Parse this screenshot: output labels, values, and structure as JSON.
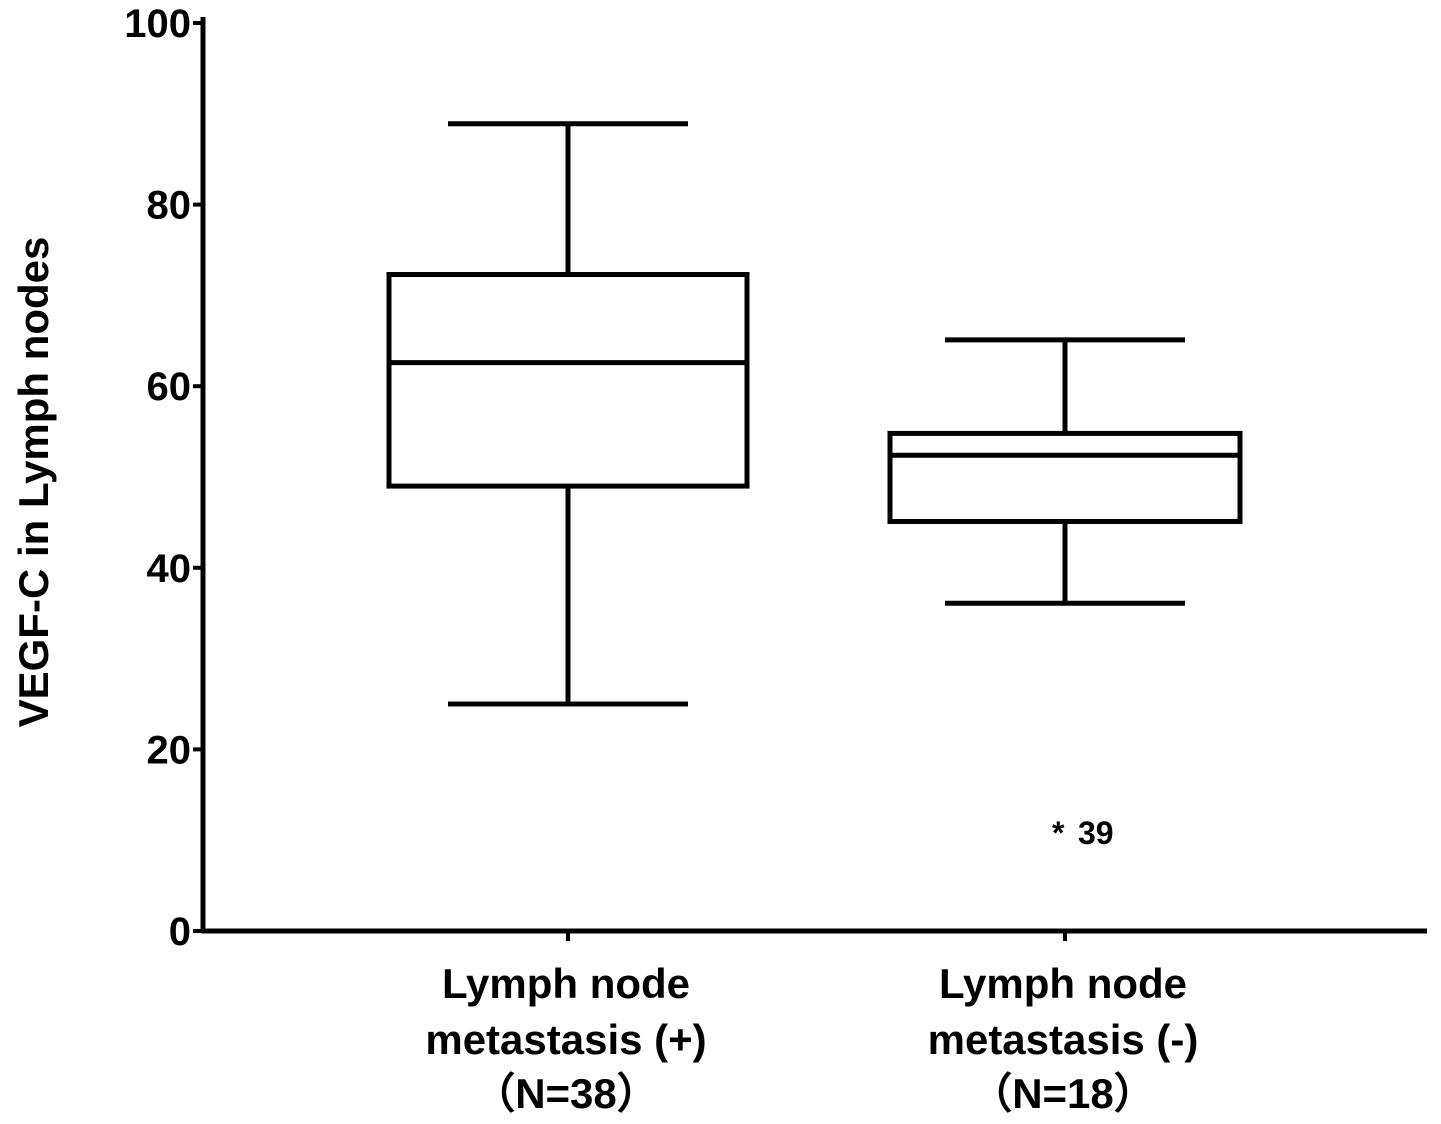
{
  "chart_data": {
    "type": "box",
    "ylabel": "VEGF-C in Lymph nodes",
    "xlabel": "",
    "ylim": [
      0,
      100
    ],
    "yticks": [
      0,
      20,
      40,
      60,
      80,
      100
    ],
    "grid": false,
    "categories": [
      {
        "lines": [
          "Lymph node",
          "metastasis (+)",
          "（N=38）"
        ]
      },
      {
        "lines": [
          "Lymph node",
          "metastasis (-)",
          "（N=18）"
        ]
      }
    ],
    "boxes": [
      {
        "min": 25,
        "q1": 49,
        "median": 62.6,
        "q3": 72.3,
        "max": 88.9,
        "outliers": []
      },
      {
        "min": 36.1,
        "q1": 45.1,
        "median": 52.4,
        "q3": 54.8,
        "max": 65.1,
        "outliers": [
          {
            "value": 12,
            "label": "39"
          }
        ]
      }
    ]
  }
}
